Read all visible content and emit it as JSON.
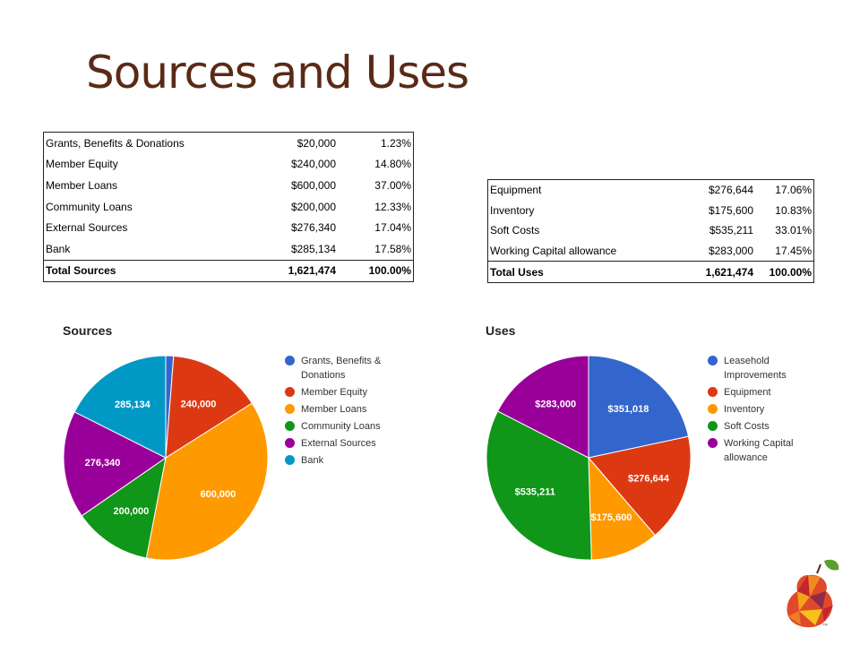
{
  "slide": {
    "title": "Sources and Uses"
  },
  "sources_table": {
    "rows": [
      {
        "label": "Grants, Benefits & Donations",
        "amount": "$20,000",
        "percent": "1.23%"
      },
      {
        "label": "Member Equity",
        "amount": "$240,000",
        "percent": "14.80%"
      },
      {
        "label": "Member Loans",
        "amount": "$600,000",
        "percent": "37.00%"
      },
      {
        "label": "Community Loans",
        "amount": "$200,000",
        "percent": "12.33%"
      },
      {
        "label": "External Sources",
        "amount": "$276,340",
        "percent": "17.04%"
      },
      {
        "label": "Bank",
        "amount": "$285,134",
        "percent": "17.58%"
      }
    ],
    "total": {
      "label": "Total Sources",
      "amount": "1,621,474",
      "percent": "100.00%"
    }
  },
  "uses_table": {
    "rows": [
      {
        "label": "Equipment",
        "amount": "$276,644",
        "percent": "17.06%"
      },
      {
        "label": "Inventory",
        "amount": "$175,600",
        "percent": "10.83%"
      },
      {
        "label": "Soft Costs",
        "amount": "$535,211",
        "percent": "33.01%"
      },
      {
        "label": "Working Capital allowance",
        "amount": "$283,000",
        "percent": "17.45%"
      }
    ],
    "total": {
      "label": "Total Uses",
      "amount": "1,621,474",
      "percent": "100.00%"
    }
  },
  "chart_data": [
    {
      "type": "pie",
      "title": "Sources",
      "legend_position": "right",
      "slices": [
        {
          "label": "Grants, Benefits & Donations",
          "value": 20000,
          "data_label": "",
          "color": "#3366cc"
        },
        {
          "label": "Member Equity",
          "value": 240000,
          "data_label": "240,000",
          "color": "#dc3912"
        },
        {
          "label": "Member Loans",
          "value": 600000,
          "data_label": "600,000",
          "color": "#ff9900"
        },
        {
          "label": "Community Loans",
          "value": 200000,
          "data_label": "200,000",
          "color": "#109618"
        },
        {
          "label": "External Sources",
          "value": 276340,
          "data_label": "276,340",
          "color": "#990099"
        },
        {
          "label": "Bank",
          "value": 285134,
          "data_label": "285,134",
          "color": "#0099c6"
        }
      ]
    },
    {
      "type": "pie",
      "title": "Uses",
      "legend_position": "right",
      "slices": [
        {
          "label": "Leasehold Improvements",
          "value": 351018,
          "data_label": "$351,018",
          "color": "#3366cc"
        },
        {
          "label": "Equipment",
          "value": 276644,
          "data_label": "$276,644",
          "color": "#dc3912"
        },
        {
          "label": "Inventory",
          "value": 175600,
          "data_label": "$175,600",
          "color": "#ff9900"
        },
        {
          "label": "Soft Costs",
          "value": 535211,
          "data_label": "$535,211",
          "color": "#109618"
        },
        {
          "label": "Working Capital allowance",
          "value": 283000,
          "data_label": "$283,000",
          "color": "#990099"
        }
      ]
    }
  ],
  "logo": {
    "icon": "pear-logo-icon",
    "mark": "™"
  }
}
